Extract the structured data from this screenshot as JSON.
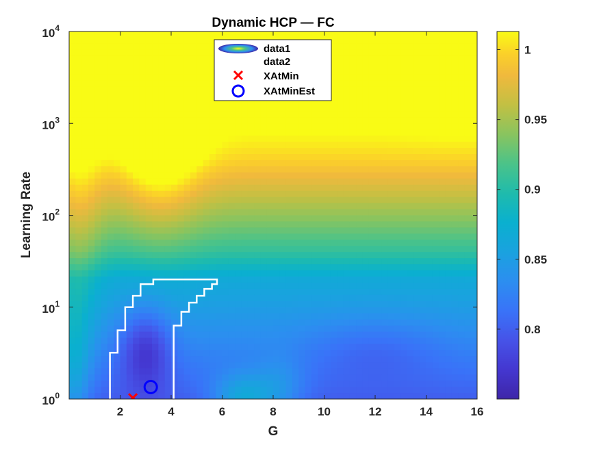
{
  "chart_data": {
    "type": "heatmap",
    "title": "Dynamic HCP — FC",
    "xlabel": "G",
    "ylabel": "Learning Rate",
    "x_range": [
      0,
      16
    ],
    "y_range": [
      1,
      10000
    ],
    "y_scale": "log",
    "x_ticks": [
      "2",
      "4",
      "6",
      "8",
      "10",
      "12",
      "14",
      "16"
    ],
    "x_tick_values": [
      2,
      4,
      6,
      8,
      10,
      12,
      14,
      16
    ],
    "y_ticks": [
      {
        "base": "10",
        "exp": "0",
        "value": 1
      },
      {
        "base": "10",
        "exp": "1",
        "value": 10
      },
      {
        "base": "10",
        "exp": "2",
        "value": 100
      },
      {
        "base": "10",
        "exp": "3",
        "value": 1000
      },
      {
        "base": "10",
        "exp": "4",
        "value": 10000
      }
    ],
    "colorbar": {
      "range": [
        0.75,
        1.013
      ],
      "ticks": [
        "0.8",
        "0.85",
        "0.9",
        "0.95",
        "1"
      ],
      "tick_values": [
        0.8,
        0.85,
        0.9,
        0.95,
        1.0
      ],
      "colormap": "parula"
    },
    "legend": {
      "placement": "top-center",
      "entries": [
        {
          "label": "data1",
          "marker": "filled-contour"
        },
        {
          "label": "data2",
          "marker": "none"
        },
        {
          "label": "XAtMin",
          "marker": "x",
          "color": "#ff0000"
        },
        {
          "label": "XAtMinEst",
          "marker": "o",
          "color": "#0000ff"
        }
      ]
    },
    "series": [
      {
        "name": "data2",
        "type": "contour-line",
        "color": "#ffffff",
        "points": [
          [
            1.6,
            1.0
          ],
          [
            1.6,
            3.2
          ],
          [
            1.9,
            3.2
          ],
          [
            1.9,
            5.6
          ],
          [
            2.2,
            5.6
          ],
          [
            2.2,
            10
          ],
          [
            2.5,
            10
          ],
          [
            2.5,
            13.3
          ],
          [
            2.8,
            13.3
          ],
          [
            2.8,
            17.8
          ],
          [
            3.3,
            17.8
          ],
          [
            3.3,
            20
          ],
          [
            5.8,
            20
          ],
          [
            5.8,
            17.8
          ],
          [
            5.6,
            17.8
          ],
          [
            5.6,
            15.8
          ],
          [
            5.3,
            15.8
          ],
          [
            5.3,
            13.3
          ],
          [
            5.0,
            13.3
          ],
          [
            5.0,
            11.2
          ],
          [
            4.7,
            11.2
          ],
          [
            4.7,
            8.9
          ],
          [
            4.4,
            8.9
          ],
          [
            4.4,
            6.3
          ],
          [
            4.1,
            6.3
          ],
          [
            4.1,
            1.0
          ]
        ]
      },
      {
        "name": "XAtMin",
        "type": "scatter",
        "marker": "x",
        "color": "#ff0000",
        "points": [
          [
            2.5,
            1.03
          ]
        ]
      },
      {
        "name": "XAtMinEst",
        "type": "scatter",
        "marker": "o",
        "color": "#0000ff",
        "points": [
          [
            3.2,
            1.35
          ]
        ]
      }
    ],
    "field": {
      "description_points": [
        {
          "x": 3.0,
          "y": 3.0,
          "v": 0.76
        },
        {
          "x": 7.0,
          "y": 1.0,
          "v": 0.86
        },
        {
          "x": 9.0,
          "y": 4.0,
          "v": 0.79
        },
        {
          "x": 14.0,
          "y": 4.0,
          "v": 0.79
        },
        {
          "x": 5.0,
          "y": 1000,
          "v": 0.97
        },
        {
          "x": 15.0,
          "y": 8000,
          "v": 1.01
        }
      ]
    }
  }
}
